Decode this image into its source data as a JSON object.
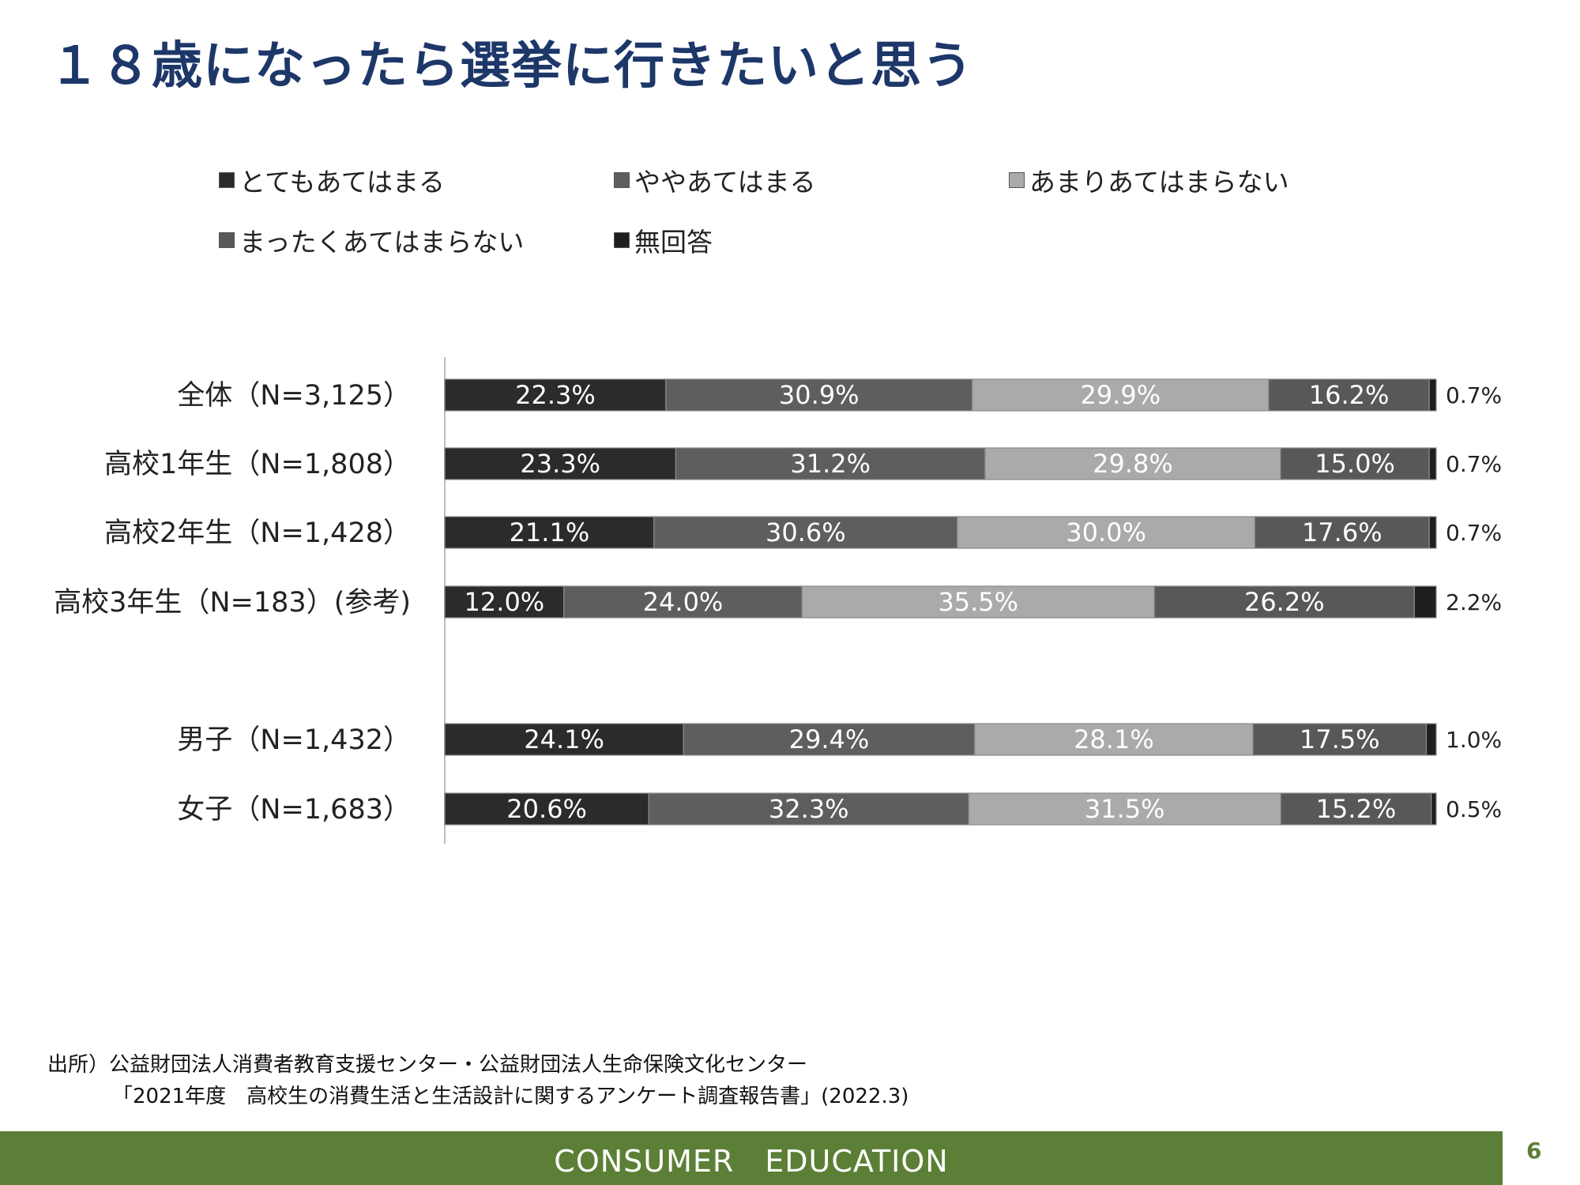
{
  "title": "１８歳になったら選挙に行きたいと思う",
  "colors": {
    "title": "#1d3769",
    "footer_bg": "#5b7f36",
    "series": [
      "#2b2b2b",
      "#5e5e5e",
      "#aaaaaa",
      "#585858",
      "#1e1e1e"
    ]
  },
  "chart_data": {
    "type": "bar",
    "orientation": "horizontal",
    "stacked": true,
    "unit": "%",
    "legend_position": "top",
    "grid": false,
    "categories": [
      "全体（N=3,125）",
      "高校1年生（N=1,808）",
      "高校2年生（N=1,428）",
      "高校3年生（N=183）(参考)",
      "男子（N=1,432）",
      "女子（N=1,683）"
    ],
    "series": [
      {
        "name": "とてもあてはまる",
        "values": [
          22.3,
          23.3,
          21.1,
          12.0,
          24.1,
          20.6
        ],
        "labels": [
          "22.3%",
          "23.3%",
          "21.1%",
          "12.0%",
          "24.1%",
          "20.6%"
        ]
      },
      {
        "name": "ややあてはまる",
        "values": [
          30.9,
          31.2,
          30.6,
          24.0,
          29.4,
          32.3
        ],
        "labels": [
          "30.9%",
          "31.2%",
          "30.6%",
          "24.0%",
          "29.4%",
          "32.3%"
        ]
      },
      {
        "name": "あまりあてはまらない",
        "values": [
          29.9,
          29.8,
          30.0,
          35.5,
          28.1,
          31.5
        ],
        "labels": [
          "29.9%",
          "29.8%",
          "30.0%",
          "35.5%",
          "28.1%",
          "31.5%"
        ]
      },
      {
        "name": "まったくあてはまらない",
        "values": [
          16.2,
          15.0,
          17.6,
          26.2,
          17.5,
          15.2
        ],
        "labels": [
          "16.2%",
          "15.0%",
          "17.6%",
          "26.2%",
          "17.5%",
          "15.2%"
        ]
      },
      {
        "name": "無回答",
        "values": [
          0.7,
          0.7,
          0.7,
          2.2,
          1.0,
          0.5
        ],
        "labels": [
          "0.7%",
          "0.7%",
          "0.7%",
          "2.2%",
          "1.0%",
          "0.5%"
        ]
      }
    ]
  },
  "source": {
    "line1": "出所）公益財団法人消費者教育支援センター・公益財団法人生命保険文化センター",
    "line2": "「2021年度　高校生の消費生活と生活設計に関するアンケート調査報告書」(2022.3)"
  },
  "footer": {
    "text": "CONSUMER　EDUCATION",
    "page_number": "6"
  }
}
